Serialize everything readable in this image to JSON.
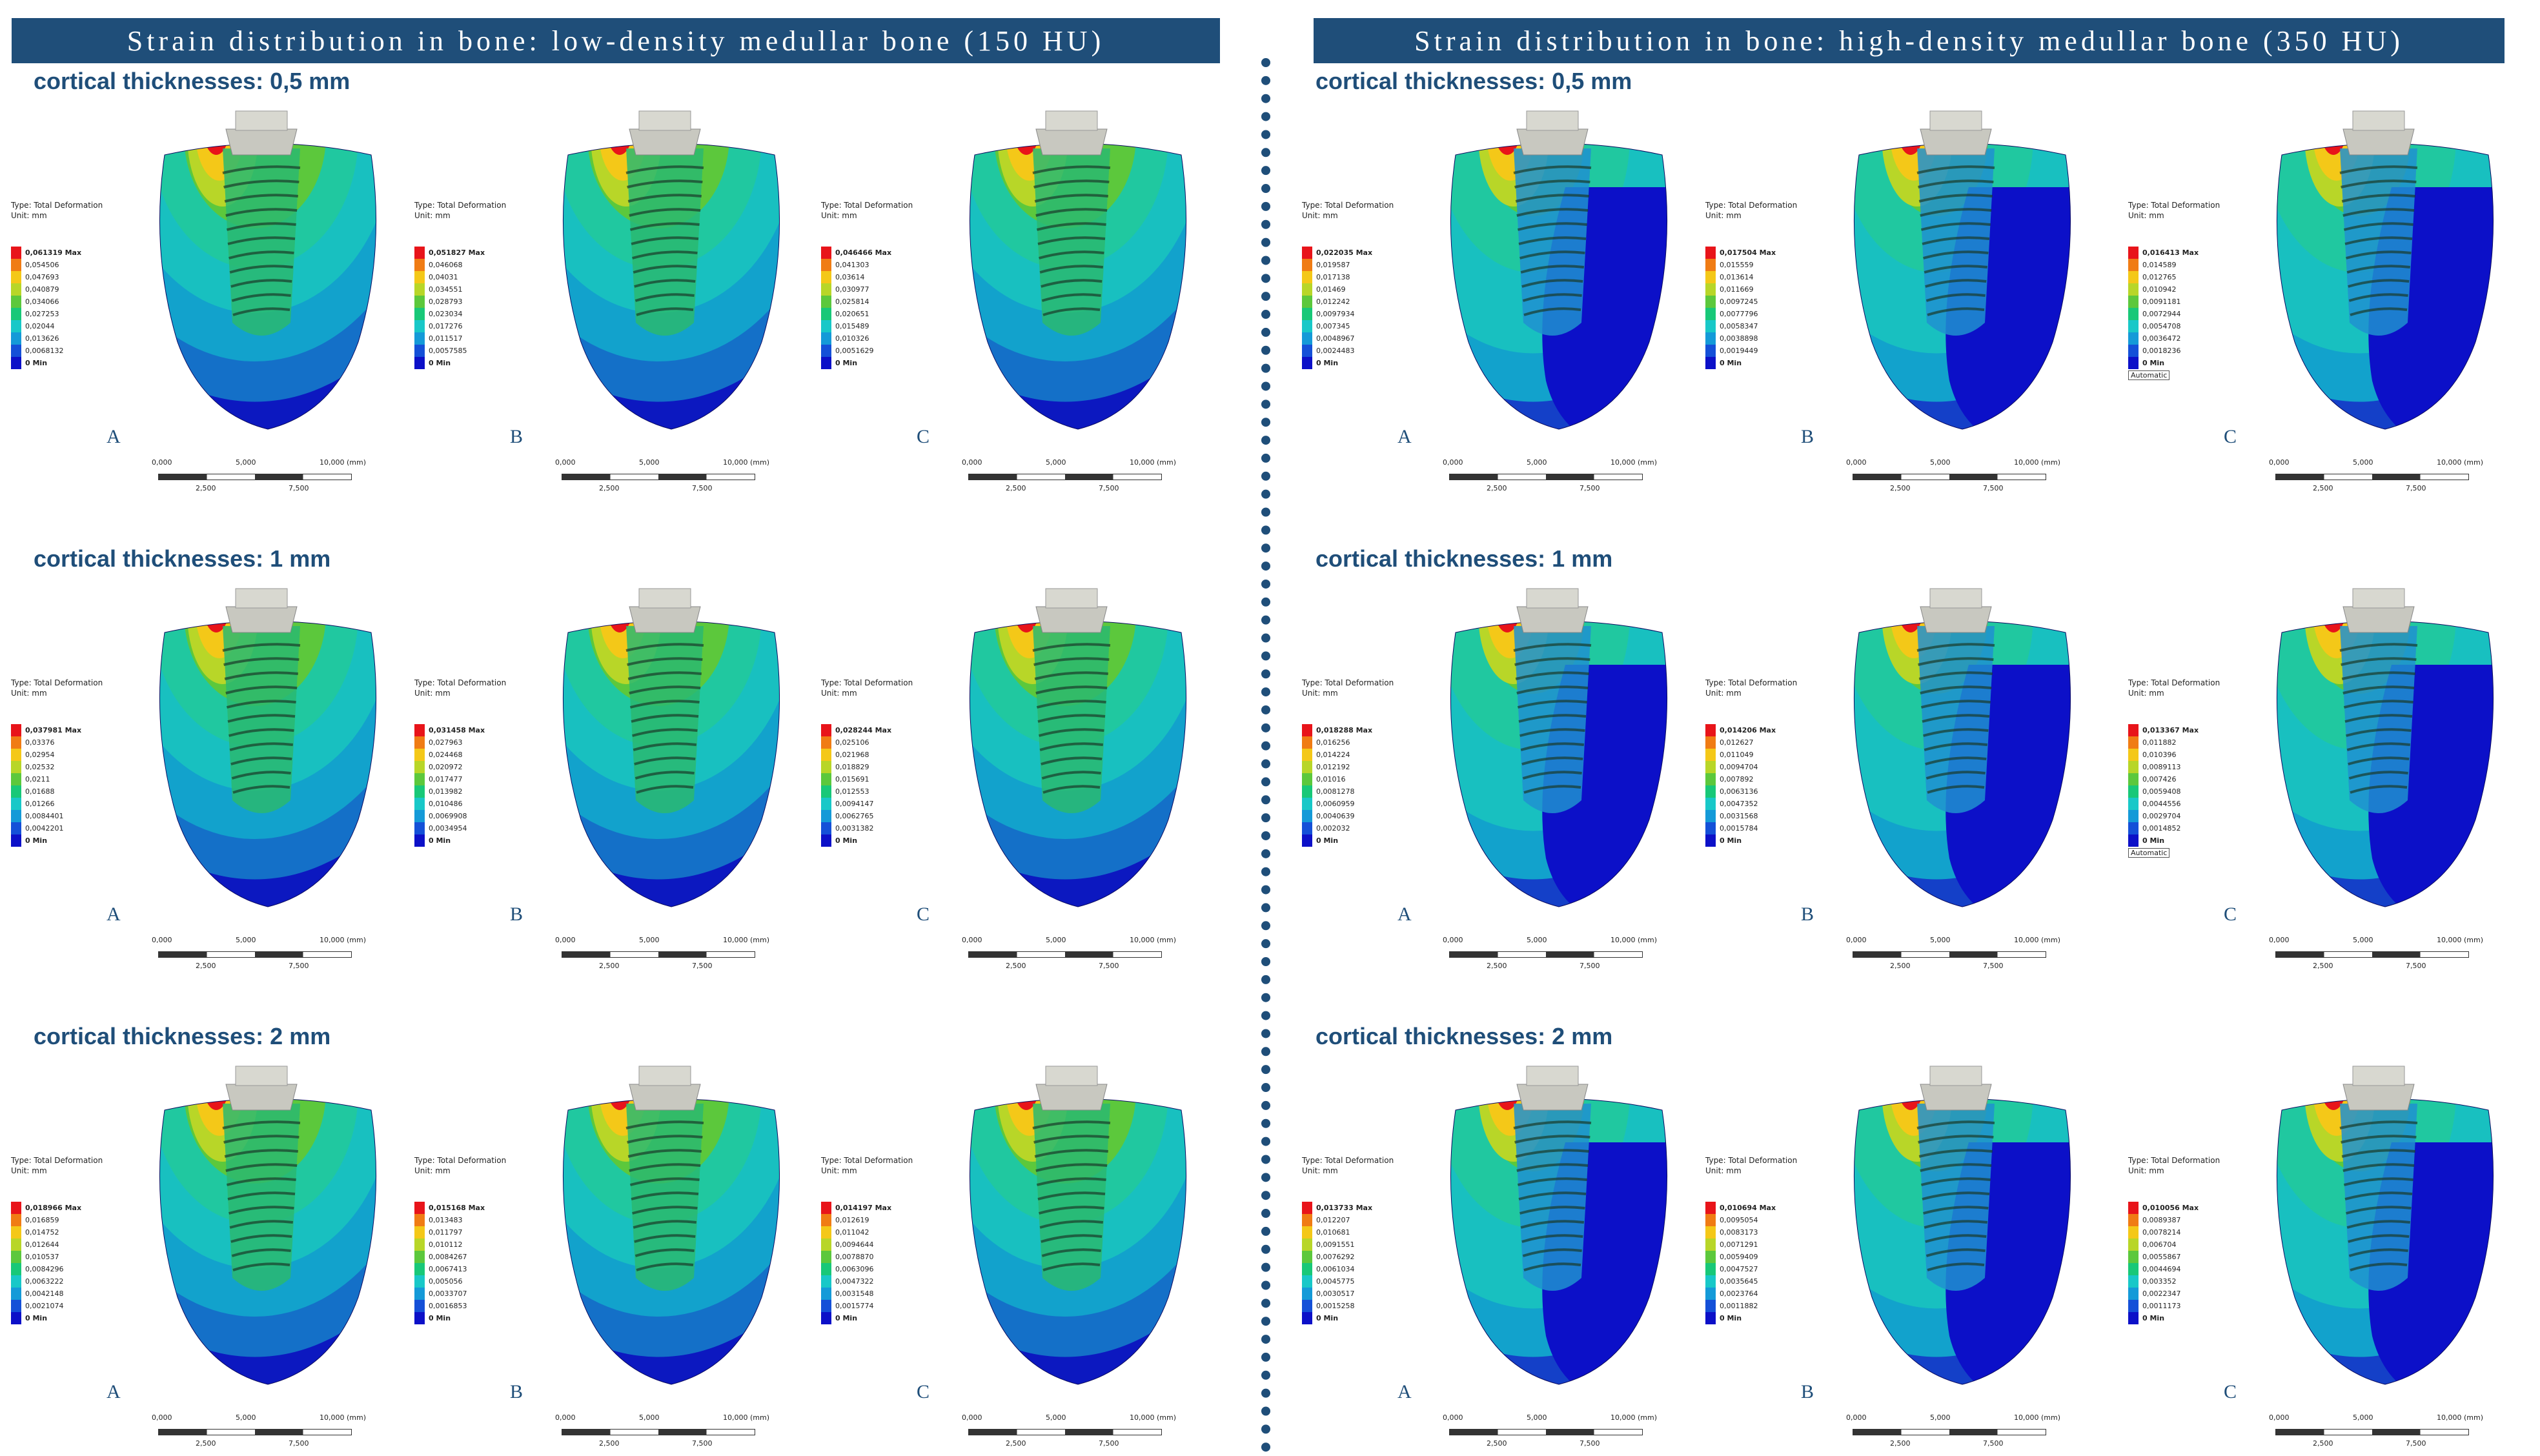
{
  "banners": {
    "left": "Strain distribution in bone: low-density medullar bone (150 HU)",
    "right": "Strain distribution in bone: high-density medullar bone (350 HU)"
  },
  "row_titles": [
    "cortical thicknesses: 0,5 mm",
    "cortical thicknesses: 1 mm",
    "cortical thicknesses: 2 mm"
  ],
  "legend_header": {
    "type": "Type: Total Deformation",
    "unit": "Unit: mm"
  },
  "panel_letters": [
    "A",
    "B",
    "C"
  ],
  "scale_bar": {
    "top_labels": [
      "0,000",
      "5,000",
      "10,000 (mm)"
    ],
    "bottom_labels": [
      "2,500",
      "7,500"
    ]
  },
  "automatic_label": "Automatic",
  "legend_colors": [
    "#e8141a",
    "#f07c14",
    "#f4c818",
    "#b8d628",
    "#5cc83c",
    "#18c878",
    "#18c8c8",
    "#149ad8",
    "#1450d8",
    "#0c10c8"
  ],
  "panels": [
    {
      "bone": "low",
      "row": 0,
      "col": 0,
      "letter": "A",
      "values": [
        "0,061319 Max",
        "0,054506",
        "0,047693",
        "0,040879",
        "0,034066",
        "0,027253",
        "0,02044",
        "0,013626",
        "0,0068132",
        "0 Min"
      ]
    },
    {
      "bone": "low",
      "row": 0,
      "col": 1,
      "letter": "B",
      "values": [
        "0,051827 Max",
        "0,046068",
        "0,04031",
        "0,034551",
        "0,028793",
        "0,023034",
        "0,017276",
        "0,011517",
        "0,0057585",
        "0 Min"
      ]
    },
    {
      "bone": "low",
      "row": 0,
      "col": 2,
      "letter": "C",
      "values": [
        "0,046466 Max",
        "0,041303",
        "0,03614",
        "0,030977",
        "0,025814",
        "0,020651",
        "0,015489",
        "0,010326",
        "0,0051629",
        "0 Min"
      ]
    },
    {
      "bone": "low",
      "row": 1,
      "col": 0,
      "letter": "A",
      "values": [
        "0,037981 Max",
        "0,03376",
        "0,02954",
        "0,02532",
        "0,0211",
        "0,01688",
        "0,01266",
        "0,0084401",
        "0,0042201",
        "0 Min"
      ]
    },
    {
      "bone": "low",
      "row": 1,
      "col": 1,
      "letter": "B",
      "values": [
        "0,031458 Max",
        "0,027963",
        "0,024468",
        "0,020972",
        "0,017477",
        "0,013982",
        "0,010486",
        "0,0069908",
        "0,0034954",
        "0 Min"
      ]
    },
    {
      "bone": "low",
      "row": 1,
      "col": 2,
      "letter": "C",
      "values": [
        "0,028244 Max",
        "0,025106",
        "0,021968",
        "0,018829",
        "0,015691",
        "0,012553",
        "0,0094147",
        "0,0062765",
        "0,0031382",
        "0 Min"
      ]
    },
    {
      "bone": "low",
      "row": 2,
      "col": 0,
      "letter": "A",
      "values": [
        "0,018966 Max",
        "0,016859",
        "0,014752",
        "0,012644",
        "0,010537",
        "0,0084296",
        "0,0063222",
        "0,0042148",
        "0,0021074",
        "0 Min"
      ]
    },
    {
      "bone": "low",
      "row": 2,
      "col": 1,
      "letter": "B",
      "values": [
        "0,015168 Max",
        "0,013483",
        "0,011797",
        "0,010112",
        "0,0084267",
        "0,0067413",
        "0,005056",
        "0,0033707",
        "0,0016853",
        "0 Min"
      ]
    },
    {
      "bone": "low",
      "row": 2,
      "col": 2,
      "letter": "C",
      "values": [
        "0,014197 Max",
        "0,012619",
        "0,011042",
        "0,0094644",
        "0,0078870",
        "0,0063096",
        "0,0047322",
        "0,0031548",
        "0,0015774",
        "0 Min"
      ]
    },
    {
      "bone": "high",
      "row": 0,
      "col": 0,
      "letter": "A",
      "values": [
        "0,022035 Max",
        "0,019587",
        "0,017138",
        "0,01469",
        "0,012242",
        "0,0097934",
        "0,007345",
        "0,0048967",
        "0,0024483",
        "0 Min"
      ]
    },
    {
      "bone": "high",
      "row": 0,
      "col": 1,
      "letter": "B",
      "values": [
        "0,017504 Max",
        "0,015559",
        "0,013614",
        "0,011669",
        "0,0097245",
        "0,0077796",
        "0,0058347",
        "0,0038898",
        "0,0019449",
        "0 Min"
      ]
    },
    {
      "bone": "high",
      "row": 0,
      "col": 2,
      "letter": "C",
      "auto": true,
      "values": [
        "0,016413 Max",
        "0,014589",
        "0,012765",
        "0,010942",
        "0,0091181",
        "0,0072944",
        "0,0054708",
        "0,0036472",
        "0,0018236",
        "0 Min"
      ]
    },
    {
      "bone": "high",
      "row": 1,
      "col": 0,
      "letter": "A",
      "values": [
        "0,018288 Max",
        "0,016256",
        "0,014224",
        "0,012192",
        "0,01016",
        "0,0081278",
        "0,0060959",
        "0,0040639",
        "0,002032",
        "0 Min"
      ]
    },
    {
      "bone": "high",
      "row": 1,
      "col": 1,
      "letter": "B",
      "values": [
        "0,014206 Max",
        "0,012627",
        "0,011049",
        "0,0094704",
        "0,007892",
        "0,0063136",
        "0,0047352",
        "0,0031568",
        "0,0015784",
        "0 Min"
      ]
    },
    {
      "bone": "high",
      "row": 1,
      "col": 2,
      "letter": "C",
      "auto": true,
      "values": [
        "0,013367 Max",
        "0,011882",
        "0,010396",
        "0,0089113",
        "0,007426",
        "0,0059408",
        "0,0044556",
        "0,0029704",
        "0,0014852",
        "0 Min"
      ]
    },
    {
      "bone": "high",
      "row": 2,
      "col": 0,
      "letter": "A",
      "values": [
        "0,013733 Max",
        "0,012207",
        "0,010681",
        "0,0091551",
        "0,0076292",
        "0,0061034",
        "0,0045775",
        "0,0030517",
        "0,0015258",
        "0 Min"
      ]
    },
    {
      "bone": "high",
      "row": 2,
      "col": 1,
      "letter": "B",
      "values": [
        "0,010694 Max",
        "0,0095054",
        "0,0083173",
        "0,0071291",
        "0,0059409",
        "0,0047527",
        "0,0035645",
        "0,0023764",
        "0,0011882",
        "0 Min"
      ]
    },
    {
      "bone": "high",
      "row": 2,
      "col": 2,
      "letter": "C",
      "values": [
        "0,010056 Max",
        "0,0089387",
        "0,0078214",
        "0,006704",
        "0,0055867",
        "0,0044694",
        "0,003352",
        "0,0022347",
        "0,0011173",
        "0 Min"
      ]
    }
  ]
}
